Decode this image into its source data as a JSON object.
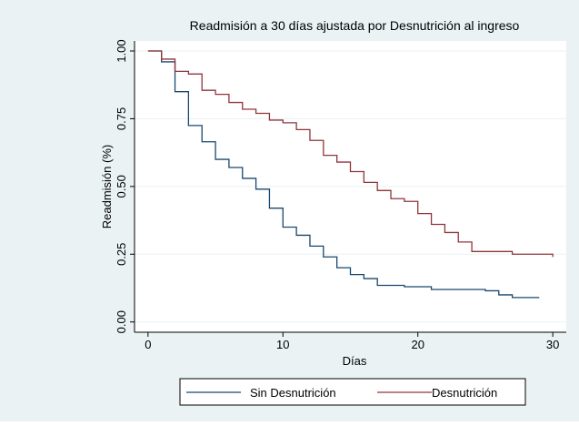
{
  "chart_data": {
    "type": "step",
    "title": "Readmisión a 30 días ajustada por Desnutrición al ingreso",
    "x_label": "Días",
    "y_label": "Readmisión (%)",
    "x": [
      0,
      1,
      2,
      3,
      4,
      5,
      6,
      7,
      8,
      9,
      10,
      11,
      12,
      13,
      14,
      15,
      16,
      17,
      18,
      19,
      20,
      21,
      22,
      23,
      24,
      25,
      26,
      27,
      28,
      29,
      30
    ],
    "series": [
      {
        "name": "Sin Desnutrición",
        "color": "#1a476f",
        "values": [
          1.0,
          0.96,
          0.85,
          0.725,
          0.665,
          0.6,
          0.57,
          0.53,
          0.49,
          0.42,
          0.35,
          0.32,
          0.28,
          0.24,
          0.2,
          0.175,
          0.16,
          0.135,
          0.135,
          0.13,
          0.13,
          0.12,
          0.12,
          0.12,
          0.12,
          0.115,
          0.1,
          0.09,
          0.09,
          0.09,
          null
        ]
      },
      {
        "name": "Desnutrición",
        "color": "#90353b",
        "values": [
          1.0,
          0.97,
          0.925,
          0.915,
          0.855,
          0.84,
          0.81,
          0.785,
          0.77,
          0.745,
          0.735,
          0.71,
          0.67,
          0.615,
          0.59,
          0.555,
          0.515,
          0.485,
          0.455,
          0.445,
          0.4,
          0.36,
          0.33,
          0.295,
          0.26,
          0.26,
          0.26,
          0.25,
          0.25,
          0.25,
          0.24
        ]
      }
    ],
    "xlim": [
      -1,
      31
    ],
    "xticks": [
      0,
      10,
      20,
      30
    ],
    "ylim": [
      -0.038,
      1.037
    ],
    "yticks": [
      {
        "value": 0,
        "label": "0.00"
      },
      {
        "value": 0.25,
        "label": "0.25"
      },
      {
        "value": 0.5,
        "label": "0.50"
      },
      {
        "value": 0.75,
        "label": "0.75"
      },
      {
        "value": 1,
        "label": "1.00"
      }
    ],
    "grid": true
  }
}
